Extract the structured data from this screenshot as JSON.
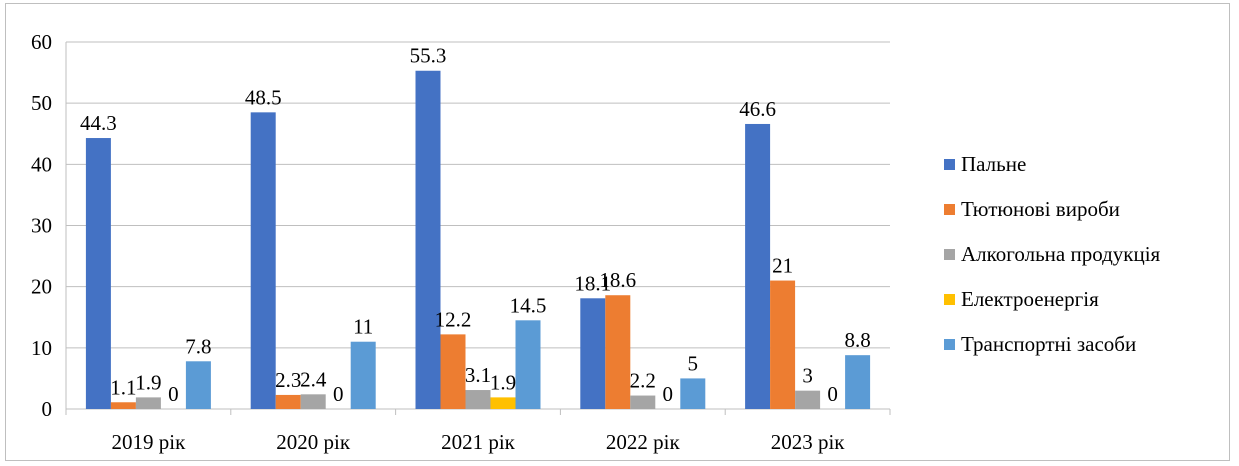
{
  "chart_data": {
    "type": "bar",
    "categories": [
      "2019 рік",
      "2020 рік",
      "2021 рік",
      "2022 рік",
      "2023 рік"
    ],
    "series": [
      {
        "name": "Пальне",
        "color": "#4472C4",
        "values": [
          44.3,
          48.5,
          55.3,
          18.1,
          46.6
        ]
      },
      {
        "name": "Тютюнові вироби",
        "color": "#ED7D31",
        "values": [
          1.1,
          2.3,
          12.2,
          18.6,
          21
        ]
      },
      {
        "name": "Алкогольна продукція",
        "color": "#A5A5A5",
        "values": [
          1.9,
          2.4,
          3.1,
          2.2,
          3
        ]
      },
      {
        "name": "Електроенергія",
        "color": "#FFC000",
        "values": [
          0,
          0,
          1.9,
          0,
          0
        ]
      },
      {
        "name": "Транспортні засоби",
        "color": "#5B9BD5",
        "values": [
          7.8,
          11,
          14.5,
          5,
          8.8
        ]
      }
    ],
    "y_ticks": [
      "0",
      "10",
      "20",
      "30",
      "40",
      "50",
      "60"
    ],
    "ylim": [
      0,
      60
    ],
    "grid": true,
    "legend_position": "right",
    "data_labels": true
  }
}
